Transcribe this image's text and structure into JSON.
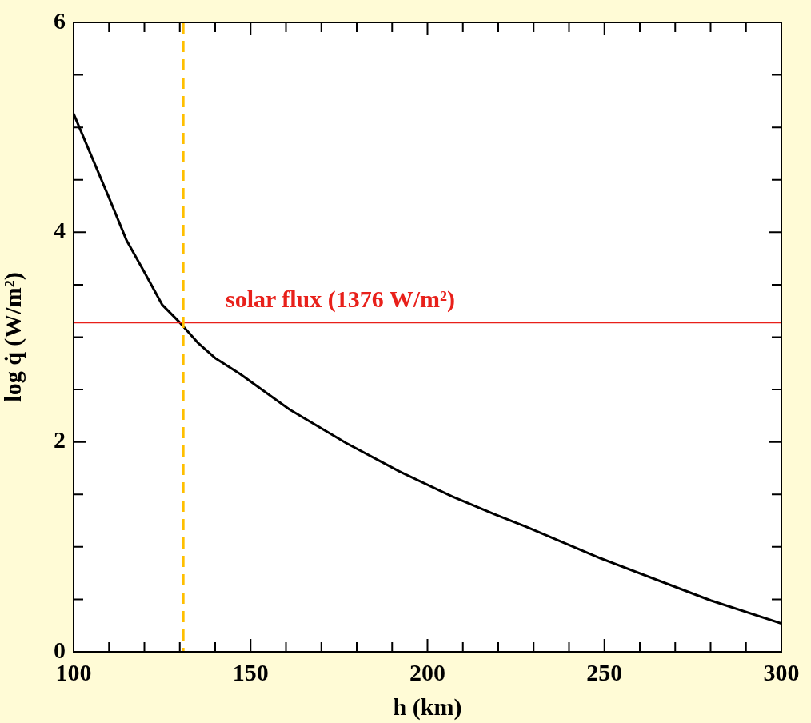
{
  "chart_data": {
    "type": "line",
    "xlabel": "h (km)",
    "ylabel": "log q̇ (W/m²)",
    "x": [
      100,
      105,
      110,
      115,
      120,
      125,
      130,
      135,
      140,
      147,
      161,
      177,
      192,
      207,
      219,
      228,
      249,
      280,
      300
    ],
    "series": [
      {
        "color": "#000000",
        "values": [
          5.13,
          4.73,
          4.33,
          3.92,
          3.62,
          3.31,
          3.14,
          2.95,
          2.8,
          2.65,
          2.31,
          1.99,
          1.72,
          1.48,
          1.31,
          1.19,
          0.89,
          0.49,
          0.27
        ]
      }
    ],
    "xlim": [
      100,
      300
    ],
    "xticks": [
      100,
      {
        "value": 110,
        "label": null
      },
      {
        "value": 120,
        "label": null
      },
      {
        "value": 130,
        "label": null
      },
      {
        "value": 140,
        "label": null
      },
      150,
      {
        "value": 160,
        "label": null
      },
      {
        "value": 170,
        "label": null
      },
      {
        "value": 180,
        "label": null
      },
      {
        "value": 190,
        "label": null
      },
      200,
      {
        "value": 210,
        "label": null
      },
      {
        "value": 220,
        "label": null
      },
      {
        "value": 230,
        "label": null
      },
      {
        "value": 240,
        "label": null
      },
      250,
      {
        "value": 260,
        "label": null
      },
      {
        "value": 270,
        "label": null
      },
      {
        "value": 280,
        "label": null
      },
      {
        "value": 290,
        "label": null
      },
      300
    ],
    "ylim": [
      0,
      6
    ],
    "yticks": [
      0,
      {
        "value": 0.5,
        "label": null
      },
      {
        "value": 1,
        "label": null
      },
      {
        "value": 1.5,
        "label": null
      },
      2,
      {
        "value": 2.5,
        "label": null
      },
      {
        "value": 3,
        "label": null
      },
      {
        "value": 3.5,
        "label": null
      },
      4,
      {
        "value": 4.5,
        "label": null
      },
      {
        "value": 5,
        "label": null
      },
      {
        "value": 5.5,
        "label": null
      },
      6
    ],
    "ref_lines": [
      {
        "axis": "y",
        "value": 3.14,
        "label": "solar flux (1376 W/m²)",
        "color": "#e8201a",
        "line_style": "solid"
      },
      {
        "axis": "x",
        "value": 131,
        "color": "#ffbf00",
        "line_style": "dashed"
      }
    ],
    "grid": false,
    "legend": false,
    "marker": "none",
    "line_style": "solid"
  }
}
